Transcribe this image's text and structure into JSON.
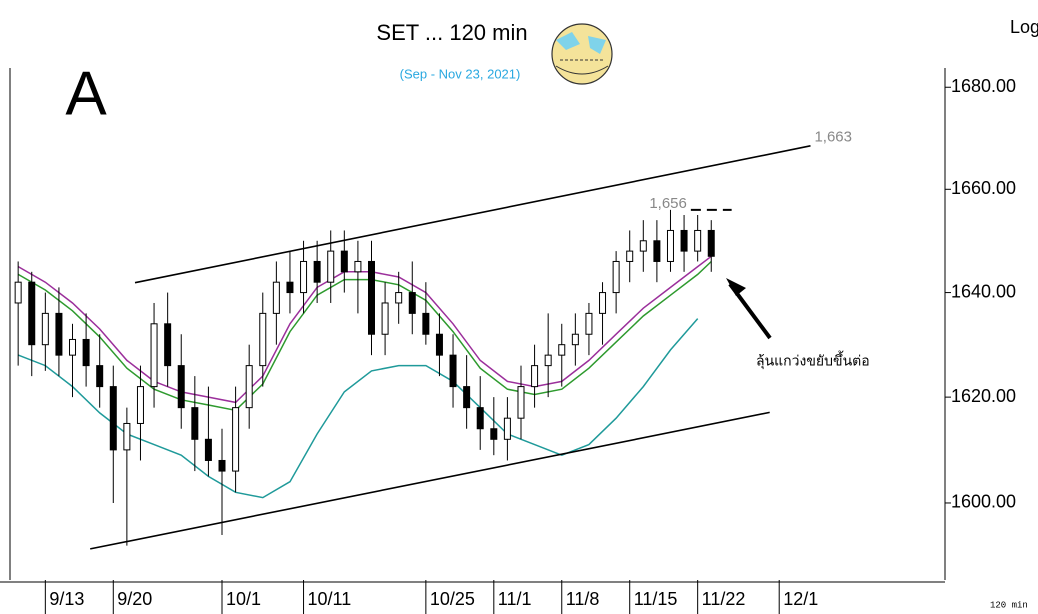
{
  "chart_data": {
    "type": "candlestick",
    "title": "SET ... 120 min",
    "subtitle": "(Sep - Nov 23, 2021)",
    "panel_label": "A",
    "scale_label": "Log",
    "interval_label": "120 min",
    "log_scale": true,
    "ylim": [
      1585.6,
      1683.8
    ],
    "yticks": [
      {
        "value": 1680,
        "label": "1680.00"
      },
      {
        "value": 1660,
        "label": "1660.00"
      },
      {
        "value": 1640,
        "label": "1640.00"
      },
      {
        "value": 1620,
        "label": "1620.00"
      },
      {
        "value": 1600,
        "label": "1600.00"
      }
    ],
    "xlim": [
      -2.6,
      66.2
    ],
    "xticks": [
      {
        "value": 0,
        "label": "9/13"
      },
      {
        "value": 5,
        "label": "9/20"
      },
      {
        "value": 13,
        "label": "10/1"
      },
      {
        "value": 19,
        "label": "10/11"
      },
      {
        "value": 28,
        "label": "10/25"
      },
      {
        "value": 33,
        "label": "11/1"
      },
      {
        "value": 38,
        "label": "11/8"
      },
      {
        "value": 43,
        "label": "11/15"
      },
      {
        "value": 48,
        "label": "11/22"
      },
      {
        "value": 54,
        "label": "12/1"
      }
    ],
    "candles": {
      "color": "#000000",
      "x": [
        -2,
        -1,
        0,
        1,
        2,
        3,
        4,
        5,
        6,
        7,
        8,
        9,
        10,
        11,
        12,
        13,
        14,
        15,
        16,
        17,
        18,
        19,
        20,
        21,
        22,
        23,
        24,
        25,
        26,
        27,
        28,
        29,
        30,
        31,
        32,
        33,
        34,
        35,
        36,
        37,
        38,
        39,
        40,
        41,
        42,
        43,
        44,
        45,
        46,
        47,
        48,
        49
      ],
      "open": [
        1638,
        1642,
        1630,
        1636,
        1628,
        1631,
        1626,
        1622,
        1610,
        1615,
        1622,
        1634,
        1626,
        1618,
        1612,
        1608,
        1606,
        1618,
        1626,
        1636,
        1642,
        1640,
        1646,
        1642,
        1648,
        1644,
        1646,
        1632,
        1638,
        1640,
        1636,
        1632,
        1628,
        1622,
        1618,
        1614,
        1612,
        1616,
        1622,
        1626,
        1628,
        1630,
        1632,
        1636,
        1640,
        1646,
        1648,
        1650,
        1646,
        1652,
        1648,
        1652
      ],
      "high": [
        1646,
        1644,
        1640,
        1641,
        1634,
        1636,
        1632,
        1626,
        1618,
        1626,
        1638,
        1640,
        1632,
        1624,
        1622,
        1614,
        1622,
        1630,
        1640,
        1646,
        1648,
        1650,
        1650,
        1652,
        1652,
        1650,
        1650,
        1642,
        1644,
        1646,
        1642,
        1636,
        1632,
        1628,
        1624,
        1620,
        1620,
        1626,
        1630,
        1636,
        1634,
        1636,
        1638,
        1642,
        1648,
        1652,
        1654,
        1654,
        1656,
        1655,
        1655,
        1654
      ],
      "low": [
        1626,
        1624,
        1625,
        1624,
        1620,
        1622,
        1618,
        1600,
        1592,
        1608,
        1618,
        1622,
        1614,
        1606,
        1605,
        1594,
        1602,
        1614,
        1622,
        1630,
        1636,
        1636,
        1638,
        1638,
        1640,
        1636,
        1628,
        1628,
        1634,
        1632,
        1630,
        1624,
        1618,
        1614,
        1610,
        1609,
        1608,
        1612,
        1618,
        1620,
        1622,
        1626,
        1628,
        1630,
        1636,
        1642,
        1644,
        1642,
        1644,
        1644,
        1646,
        1644
      ],
      "close": [
        1642,
        1630,
        1636,
        1628,
        1631,
        1626,
        1622,
        1610,
        1615,
        1622,
        1634,
        1626,
        1618,
        1612,
        1608,
        1606,
        1618,
        1626,
        1636,
        1642,
        1640,
        1646,
        1642,
        1648,
        1644,
        1646,
        1632,
        1638,
        1640,
        1636,
        1632,
        1628,
        1622,
        1618,
        1614,
        1612,
        1616,
        1622,
        1626,
        1628,
        1630,
        1632,
        1636,
        1640,
        1646,
        1648,
        1650,
        1646,
        1652,
        1648,
        1652,
        1647
      ]
    },
    "series": [
      {
        "color": "#9b2f9b",
        "x": [
          -2,
          0,
          2,
          4,
          6,
          8,
          10,
          12,
          14,
          16,
          18,
          20,
          22,
          24,
          26,
          28,
          30,
          32,
          34,
          36,
          38,
          40,
          42,
          44,
          46,
          48,
          49
        ],
        "values": [
          1645,
          1642,
          1638,
          1633,
          1627,
          1623,
          1621,
          1620,
          1619,
          1624,
          1634,
          1641,
          1644,
          1644,
          1643,
          1640,
          1634,
          1627,
          1623,
          1622,
          1623,
          1627,
          1632,
          1637,
          1641,
          1645,
          1647
        ]
      },
      {
        "color": "#2e9a2e",
        "x": [
          -2,
          0,
          2,
          4,
          6,
          8,
          10,
          12,
          14,
          16,
          18,
          20,
          22,
          24,
          26,
          28,
          30,
          32,
          34,
          36,
          38,
          40,
          42,
          44,
          46,
          48,
          49
        ],
        "values": [
          1643.5,
          1640.5,
          1636.5,
          1631.5,
          1625.5,
          1621.5,
          1619.5,
          1618.5,
          1617.5,
          1622.5,
          1632.5,
          1639.5,
          1642.5,
          1642.5,
          1641.5,
          1638.5,
          1632.5,
          1625.5,
          1621.5,
          1620.5,
          1621.5,
          1625.5,
          1630.5,
          1635.5,
          1639.5,
          1643.5,
          1646
        ]
      },
      {
        "color": "#1f9a9a",
        "x": [
          -2,
          0,
          2,
          4,
          6,
          8,
          10,
          12,
          14,
          16,
          18,
          20,
          22,
          24,
          26,
          28,
          30,
          32,
          34,
          36,
          38,
          40,
          42,
          44,
          46,
          48
        ],
        "values": [
          1628,
          1626,
          1622,
          1617,
          1613,
          1611,
          1609,
          1605,
          1602,
          1601,
          1604,
          1613,
          1621,
          1625,
          1626,
          1626,
          1623,
          1618,
          1613,
          1611,
          1609,
          1611,
          1616,
          1622,
          1629,
          1635
        ]
      }
    ],
    "trendlines": [
      {
        "x": [
          6.6,
          56.3
        ],
        "values": [
          1641.9,
          1668.5
        ],
        "label": "1,663"
      },
      {
        "x": [
          3.3,
          53.3
        ],
        "values": [
          1591.4,
          1617.1
        ]
      }
    ],
    "resistance": {
      "x": [
        47.5,
        50.5
      ],
      "value": 1656,
      "label": "1,656"
    },
    "annotation": "ลุ้นแกว่งขยับขึ้นต่อ"
  }
}
